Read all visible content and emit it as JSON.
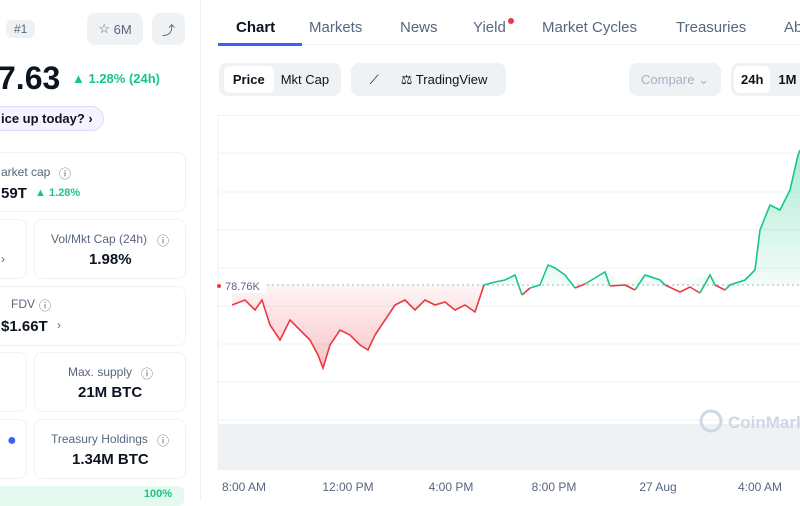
{
  "left": {
    "rank": "#1",
    "watch": "6M",
    "price": "7.63",
    "change": "1.28% (24h)",
    "prompt": "ice up today?",
    "stats": [
      {
        "label": "arket cap",
        "value": "59T",
        "change": "1.28%"
      },
      {
        "label": "Vol/Mkt Cap (24h)",
        "value": "1.98%"
      },
      {
        "label": "FDV",
        "value": "$1.66T"
      },
      {
        "label": "Max. supply",
        "value": "21M BTC"
      },
      {
        "label": "Treasury Holdings",
        "value": "1.34M BTC"
      }
    ],
    "bottom": "100%"
  },
  "tabs": [
    "Chart",
    "Markets",
    "News",
    "Yield",
    "Market Cycles",
    "Treasuries",
    "Ab"
  ],
  "toolbar": {
    "price": "Price",
    "mktcap": "Mkt Cap",
    "tradingview": "TradingView",
    "compare": "Compare",
    "ranges": [
      "24h",
      "1M"
    ]
  },
  "chart": {
    "baseline": "78.76K",
    "xlabels": [
      "8:00 AM",
      "12:00 PM",
      "4:00 PM",
      "8:00 PM",
      "27 Aug",
      "4:00 AM"
    ],
    "watermark": "CoinMark"
  }
}
